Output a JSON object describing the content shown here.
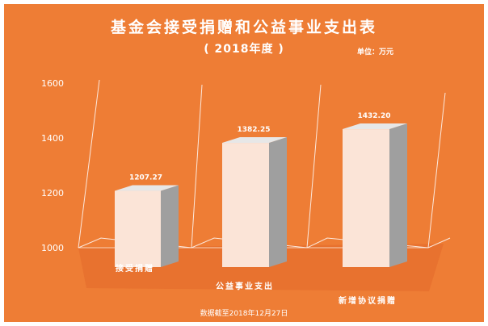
{
  "header": {
    "title": "基金会接受捐赠和公益事业支出表",
    "subtitle": "( 2018年度 )",
    "unit": "单位：万元"
  },
  "footer": {
    "note": "数据截至2018年12月27日"
  },
  "colors": {
    "background": "#ee7d35",
    "bar_front": "#fbe4d7",
    "bar_top": "#e7e7e7",
    "bar_side": "#9f9f9f",
    "axis_line": "#fce8dc",
    "floor": "#e4692a"
  },
  "chart_data": {
    "type": "bar",
    "categories": [
      "接受捐赠",
      "公益事业支出",
      "新增协议捐赠"
    ],
    "values": [
      1207.27,
      1382.25,
      1432.2
    ],
    "data_labels": [
      "1207.27",
      "1382.25",
      "1432.20"
    ],
    "title": "基金会接受捐赠和公益事业支出表",
    "xlabel": "",
    "ylabel": "",
    "ylim": [
      1000,
      1600
    ],
    "yticks": [
      1000,
      1200,
      1400,
      1600
    ],
    "grid": false,
    "style": "3d-column"
  }
}
